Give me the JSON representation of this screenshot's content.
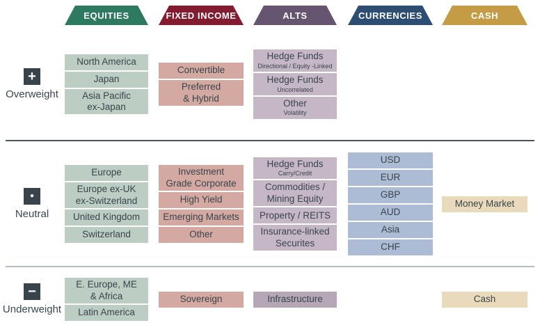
{
  "palette": {
    "text": "#3a444d",
    "icon_bg": "#39434b",
    "divider_dark": "#4a545c",
    "divider_light": "#b6bac0",
    "background": "#ffffff"
  },
  "chart_data": {
    "type": "table",
    "title": "Asset allocation positioning matrix",
    "columns": [
      {
        "key": "equities",
        "label": "EQUITIES",
        "header_color": "#2e7a61",
        "box_bg": "#bccdc3"
      },
      {
        "key": "fixed_income",
        "label": "FIXED INCOME",
        "header_color": "#841c31",
        "box_bg": "#d3a9a2"
      },
      {
        "key": "alts",
        "label": "ALTS",
        "header_color": "#655570",
        "box_bg": "#c6b7c7"
      },
      {
        "key": "currencies",
        "label": "CURRENCIES",
        "header_color": "#2e4d72",
        "box_bg": "#abbcd4"
      },
      {
        "key": "cash",
        "label": "CASH",
        "header_color": "#c49c46",
        "box_bg": "#e9dabb"
      }
    ],
    "rows": [
      {
        "key": "overweight",
        "label": "Overweight",
        "icon": {
          "name": "plus-icon",
          "glyph": "+",
          "size": 20
        },
        "cells": {
          "equities": [
            {
              "title": "North America"
            },
            {
              "title": "Japan"
            },
            {
              "title": "Asia Pacific\nex-Japan"
            }
          ],
          "fixed_income": [
            {
              "title": "Convertible"
            },
            {
              "title": "Preferred\n& Hybrid"
            }
          ],
          "alts": [
            {
              "title": "Hedge Funds",
              "subtitle": "Directional / Equity -Linked"
            },
            {
              "title": "Hedge Funds",
              "subtitle": "Uncorrelated"
            },
            {
              "title": "Other",
              "subtitle": "Volatility"
            }
          ],
          "currencies": [],
          "cash": []
        }
      },
      {
        "key": "neutral",
        "label": "Neutral",
        "icon": {
          "name": "neutral-dot-icon",
          "glyph": "●",
          "size": 10
        },
        "cells": {
          "equities": [
            {
              "title": "Europe"
            },
            {
              "title": "Europe ex-UK\nex-Switzerland"
            },
            {
              "title": "United Kingdom"
            },
            {
              "title": "Switzerland"
            }
          ],
          "fixed_income": [
            {
              "title": "Investment\nGrade Corporate"
            },
            {
              "title": "High Yield"
            },
            {
              "title": "Emerging Markets"
            },
            {
              "title": "Other"
            }
          ],
          "alts": [
            {
              "title": "Hedge Funds",
              "subtitle": "Carry/Credit"
            },
            {
              "title": "Commodities /\nMining Equity"
            },
            {
              "title": "Property / REITS"
            },
            {
              "title": "Insurance-linked\nSecurites"
            }
          ],
          "currencies": [
            {
              "title": "USD"
            },
            {
              "title": "EUR"
            },
            {
              "title": "GBP"
            },
            {
              "title": "AUD"
            },
            {
              "title": "Asia"
            },
            {
              "title": "CHF"
            }
          ],
          "cash": [
            {
              "title": "Money Market"
            }
          ]
        }
      },
      {
        "key": "underweight",
        "label": "Underweight",
        "icon": {
          "name": "minus-icon",
          "glyph": "−",
          "size": 20
        },
        "cells": {
          "equities": [
            {
              "title": "E. Europe, ME\n& Africa"
            },
            {
              "title": "Latin America"
            }
          ],
          "fixed_income": [
            {
              "title": "Sovereign"
            }
          ],
          "alts": [
            {
              "title": "Infrastructure",
              "bg": "#b5a7b6"
            }
          ],
          "currencies": [],
          "cash": [
            {
              "title": "Cash"
            }
          ]
        }
      }
    ]
  }
}
